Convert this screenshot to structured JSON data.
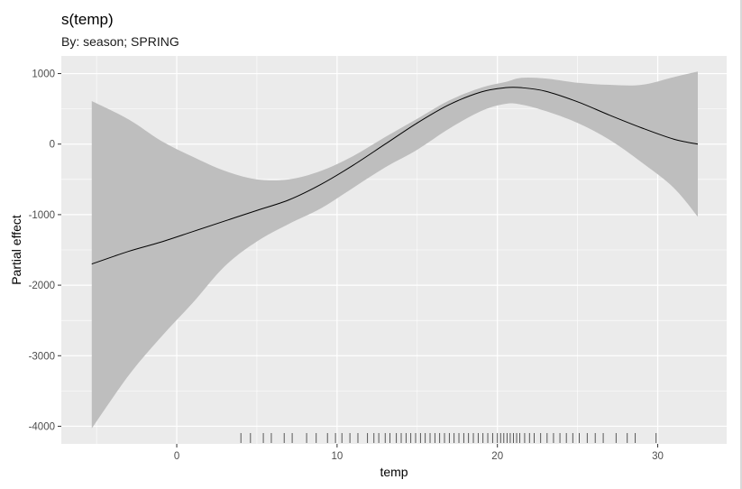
{
  "chart_data": {
    "type": "line",
    "title": "s(temp)",
    "subtitle": "By: season; SPRING",
    "xlabel": "temp",
    "ylabel": "Partial effect",
    "xlim": [
      -7.2,
      34.3
    ],
    "ylim": [
      -4250,
      1250
    ],
    "x_ticks": [
      0,
      10,
      20,
      30
    ],
    "x_tick_labels": [
      "0",
      "10",
      "20",
      "30"
    ],
    "y_ticks": [
      1000,
      0,
      -1000,
      -2000,
      -3000,
      -4000
    ],
    "y_tick_labels": [
      "1000",
      "0",
      "-1000",
      "-2000",
      "-3000",
      "-4000"
    ],
    "grid": true,
    "series": [
      {
        "x": [
          -5.3,
          -3,
          -1,
          1,
          3,
          5,
          7,
          9,
          11,
          13,
          15,
          17,
          19,
          20.5,
          21.5,
          23,
          25,
          27,
          29,
          31,
          32.5
        ],
        "y": [
          -1700,
          -1520,
          -1390,
          -1240,
          -1090,
          -940,
          -790,
          -570,
          -300,
          0,
          300,
          560,
          740,
          800,
          800,
          750,
          600,
          410,
          230,
          70,
          0
        ]
      }
    ],
    "band": {
      "x": [
        -5.3,
        -3,
        -1,
        1,
        3,
        5,
        7,
        9,
        11,
        13,
        15,
        17,
        19,
        20.5,
        21.5,
        23,
        25,
        27,
        29,
        31,
        32.5
      ],
      "upper": [
        610,
        350,
        50,
        -180,
        -380,
        -500,
        -500,
        -380,
        -170,
        100,
        360,
        620,
        800,
        880,
        940,
        930,
        870,
        840,
        840,
        950,
        1030
      ],
      "lower": [
        -4030,
        -3280,
        -2740,
        -2250,
        -1730,
        -1380,
        -1130,
        -910,
        -620,
        -330,
        -80,
        220,
        470,
        570,
        560,
        470,
        300,
        60,
        -260,
        -620,
        -1030
      ]
    },
    "rug_x": [
      4.0,
      4.6,
      5.4,
      5.9,
      6.7,
      7.2,
      8.1,
      8.7,
      9.4,
      9.9,
      10.3,
      10.8,
      11.3,
      11.9,
      12.3,
      12.6,
      13.0,
      13.3,
      13.7,
      14.0,
      14.3,
      14.6,
      14.9,
      15.2,
      15.5,
      15.8,
      16.1,
      16.4,
      16.7,
      17.0,
      17.3,
      17.6,
      17.9,
      18.2,
      18.5,
      18.8,
      19.1,
      19.4,
      19.7,
      20.0,
      20.2,
      20.4,
      20.6,
      20.8,
      21.0,
      21.2,
      21.4,
      21.7,
      22.0,
      22.3,
      22.7,
      23.1,
      23.5,
      23.9,
      24.3,
      24.7,
      25.1,
      25.6,
      26.1,
      26.6,
      27.4,
      28.1,
      28.6,
      29.9
    ],
    "colors": {
      "panel": "#ebebeb",
      "grid_major": "#ffffff",
      "band": "#bebebe",
      "line": "#000000",
      "rug": "#333333"
    }
  }
}
